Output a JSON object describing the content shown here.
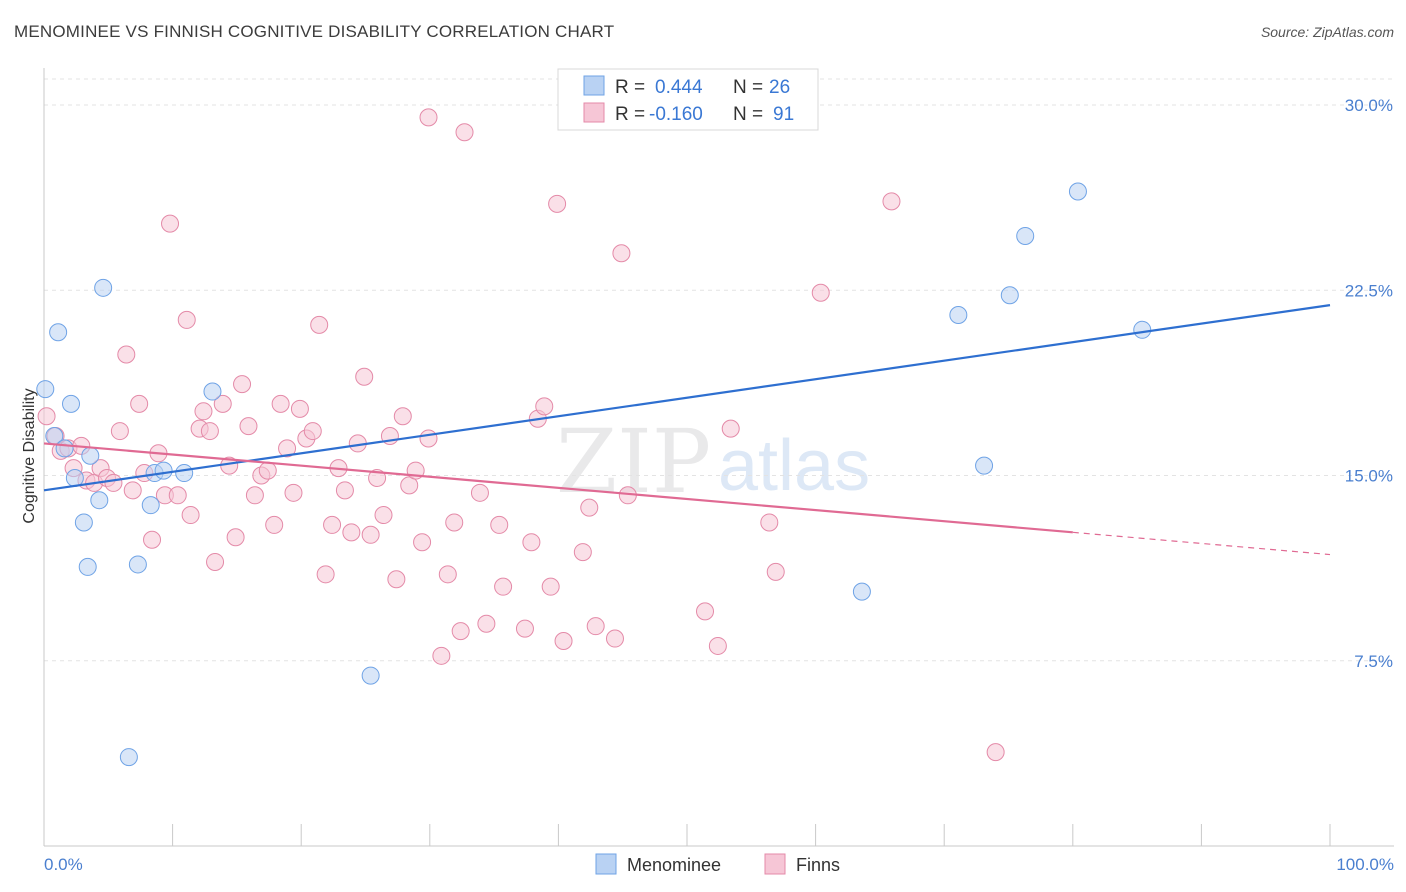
{
  "header": {
    "title": "MENOMINEE VS FINNISH COGNITIVE DISABILITY CORRELATION CHART",
    "source": "Source: ZipAtlas.com"
  },
  "watermark": {
    "zip": "ZIP",
    "atlas": "atlas"
  },
  "colors": {
    "menominee": "#6fa3e6",
    "menominee_fill": "#b9d2f3",
    "finns": "#e48aa8",
    "finns_fill": "#f6c6d6",
    "menominee_line": "#2e6fd0",
    "finns_line": "#e06a93",
    "value_text": "#3a78d4"
  },
  "legend": {
    "rows": [
      {
        "r_label": "R =",
        "r_value": "0.444",
        "n_label": "N =",
        "n_value": "26"
      },
      {
        "r_label": "R =",
        "r_value": "-0.160",
        "n_label": "N =",
        "n_value": "91"
      }
    ]
  },
  "bottom_legend": {
    "items": [
      "Menominee",
      "Finns"
    ]
  },
  "chart_data": {
    "type": "scatter",
    "title": "MENOMINEE VS FINNISH COGNITIVE DISABILITY CORRELATION CHART",
    "xlabel": "",
    "ylabel": "Cognitive Disability",
    "xlim": [
      0,
      100
    ],
    "ylim": [
      0,
      31.5
    ],
    "x_tick_labels": [
      "0.0%",
      "100.0%"
    ],
    "y_ticks": [
      7.5,
      15.0,
      22.5,
      30.0
    ],
    "y_tick_labels": [
      "7.5%",
      "15.0%",
      "22.5%",
      "30.0%"
    ],
    "grid": "horizontal dashed",
    "legend_position": "top-center",
    "series": [
      {
        "name": "Menominee",
        "r": 0.444,
        "n": 26,
        "trend": {
          "x": [
            0,
            100
          ],
          "y": [
            14.4,
            21.9
          ]
        },
        "points": [
          [
            0.1,
            18.5
          ],
          [
            0.8,
            16.6
          ],
          [
            1.6,
            16.1
          ],
          [
            2.1,
            17.9
          ],
          [
            2.4,
            14.9
          ],
          [
            3.1,
            13.1
          ],
          [
            3.4,
            11.3
          ],
          [
            3.6,
            15.8
          ],
          [
            4.3,
            14.0
          ],
          [
            4.6,
            22.6
          ],
          [
            6.6,
            3.6
          ],
          [
            7.3,
            11.4
          ],
          [
            8.3,
            13.8
          ],
          [
            8.6,
            15.1
          ],
          [
            9.3,
            15.2
          ],
          [
            10.9,
            15.1
          ],
          [
            13.1,
            18.4
          ],
          [
            1.1,
            20.8
          ],
          [
            25.4,
            6.9
          ],
          [
            63.6,
            10.3
          ],
          [
            71.1,
            21.5
          ],
          [
            73.1,
            15.4
          ],
          [
            75.1,
            22.3
          ],
          [
            76.3,
            24.7
          ],
          [
            80.4,
            26.5
          ],
          [
            85.4,
            20.9
          ]
        ]
      },
      {
        "name": "Finns",
        "r": -0.16,
        "n": 91,
        "trend": {
          "x": [
            0,
            80
          ],
          "y": [
            16.3,
            12.7
          ]
        },
        "trend_dashed": {
          "x": [
            80,
            100
          ],
          "y": [
            12.7,
            11.8
          ]
        },
        "points": [
          [
            0.2,
            17.4
          ],
          [
            0.9,
            16.6
          ],
          [
            1.3,
            16.0
          ],
          [
            1.9,
            16.1
          ],
          [
            2.3,
            15.3
          ],
          [
            2.9,
            16.2
          ],
          [
            3.3,
            14.8
          ],
          [
            3.9,
            14.7
          ],
          [
            4.4,
            15.3
          ],
          [
            4.9,
            14.9
          ],
          [
            5.4,
            14.7
          ],
          [
            5.9,
            16.8
          ],
          [
            6.4,
            19.9
          ],
          [
            6.9,
            14.4
          ],
          [
            7.4,
            17.9
          ],
          [
            7.8,
            15.1
          ],
          [
            8.4,
            12.4
          ],
          [
            8.9,
            15.9
          ],
          [
            9.4,
            14.2
          ],
          [
            9.8,
            25.2
          ],
          [
            10.4,
            14.2
          ],
          [
            11.1,
            21.3
          ],
          [
            11.4,
            13.4
          ],
          [
            12.1,
            16.9
          ],
          [
            12.4,
            17.6
          ],
          [
            12.9,
            16.8
          ],
          [
            13.3,
            11.5
          ],
          [
            13.9,
            17.9
          ],
          [
            14.4,
            15.4
          ],
          [
            14.9,
            12.5
          ],
          [
            15.4,
            18.7
          ],
          [
            15.9,
            17.0
          ],
          [
            16.4,
            14.2
          ],
          [
            16.9,
            15.0
          ],
          [
            17.4,
            15.2
          ],
          [
            17.9,
            13.0
          ],
          [
            18.4,
            17.9
          ],
          [
            18.9,
            16.1
          ],
          [
            19.4,
            14.3
          ],
          [
            19.9,
            17.7
          ],
          [
            20.4,
            16.5
          ],
          [
            20.9,
            16.8
          ],
          [
            21.4,
            21.1
          ],
          [
            21.9,
            11.0
          ],
          [
            22.4,
            13.0
          ],
          [
            22.9,
            15.3
          ],
          [
            23.4,
            14.4
          ],
          [
            23.9,
            12.7
          ],
          [
            24.4,
            16.3
          ],
          [
            24.9,
            19.0
          ],
          [
            25.4,
            12.6
          ],
          [
            25.9,
            14.9
          ],
          [
            26.4,
            13.4
          ],
          [
            26.9,
            16.6
          ],
          [
            27.4,
            10.8
          ],
          [
            27.9,
            17.4
          ],
          [
            28.4,
            14.6
          ],
          [
            28.9,
            15.2
          ],
          [
            29.4,
            12.3
          ],
          [
            29.9,
            16.5
          ],
          [
            30.9,
            7.7
          ],
          [
            31.4,
            11.0
          ],
          [
            31.9,
            13.1
          ],
          [
            32.4,
            8.7
          ],
          [
            32.7,
            28.9
          ],
          [
            33.9,
            14.3
          ],
          [
            34.4,
            9.0
          ],
          [
            35.4,
            13.0
          ],
          [
            35.7,
            10.5
          ],
          [
            37.4,
            8.8
          ],
          [
            37.9,
            12.3
          ],
          [
            38.4,
            17.3
          ],
          [
            38.9,
            17.8
          ],
          [
            39.4,
            10.5
          ],
          [
            39.9,
            26.0
          ],
          [
            40.4,
            8.3
          ],
          [
            41.9,
            11.9
          ],
          [
            42.4,
            13.7
          ],
          [
            42.9,
            8.9
          ],
          [
            44.4,
            8.4
          ],
          [
            44.9,
            24.0
          ],
          [
            45.4,
            14.2
          ],
          [
            51.4,
            9.5
          ],
          [
            52.4,
            8.1
          ],
          [
            53.4,
            16.9
          ],
          [
            56.4,
            13.1
          ],
          [
            56.9,
            11.1
          ],
          [
            60.4,
            22.4
          ],
          [
            65.9,
            26.1
          ],
          [
            74.0,
            3.8
          ],
          [
            29.9,
            29.5
          ]
        ]
      }
    ]
  }
}
